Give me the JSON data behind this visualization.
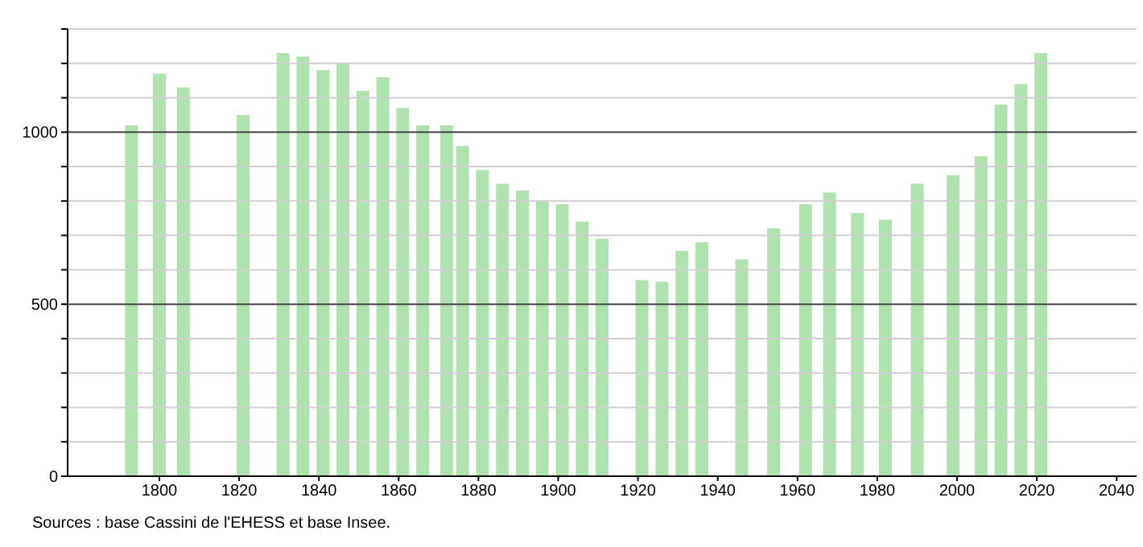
{
  "chart_data": {
    "type": "bar",
    "color": "#b0e2b0",
    "x": [
      1793,
      1800,
      1806,
      1821,
      1831,
      1836,
      1841,
      1846,
      1851,
      1856,
      1861,
      1866,
      1872,
      1876,
      1881,
      1886,
      1891,
      1896,
      1901,
      1906,
      1911,
      1921,
      1926,
      1931,
      1936,
      1946,
      1954,
      1962,
      1968,
      1975,
      1982,
      1990,
      1999,
      2006,
      2011,
      2016,
      2021
    ],
    "values": [
      1020,
      1170,
      1130,
      1050,
      1230,
      1220,
      1180,
      1200,
      1120,
      1160,
      1070,
      1020,
      1020,
      960,
      890,
      850,
      830,
      800,
      790,
      740,
      690,
      570,
      565,
      655,
      680,
      630,
      720,
      790,
      825,
      765,
      745,
      850,
      875,
      930,
      1080,
      1140,
      1230
    ],
    "xlim": [
      1777,
      2045
    ],
    "xticks": [
      1800,
      1820,
      1840,
      1860,
      1880,
      1900,
      1920,
      1940,
      1960,
      1980,
      2000,
      2020,
      2040
    ],
    "ylim": [
      0,
      1300
    ],
    "yticks": [
      0,
      {
        "value": 100,
        "label": null
      },
      {
        "value": 200,
        "label": null
      },
      {
        "value": 300,
        "label": null
      },
      {
        "value": 400,
        "label": null
      },
      500,
      {
        "value": 600,
        "label": null
      },
      {
        "value": 700,
        "label": null
      },
      {
        "value": 800,
        "label": null
      },
      {
        "value": 900,
        "label": null
      },
      1000,
      {
        "value": 1100,
        "label": null
      },
      {
        "value": 1200,
        "label": null
      },
      {
        "value": 1300,
        "label": null
      }
    ],
    "grid": "y",
    "annotations": [
      "Sources : base Cassini de l'EHESS et base Insee."
    ]
  }
}
